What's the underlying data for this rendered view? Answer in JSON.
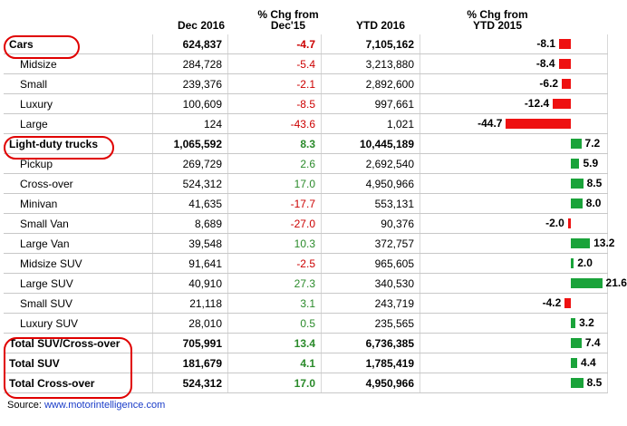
{
  "headers": {
    "dec": "Dec 2016",
    "chg_line1": "% Chg from",
    "chg_line2": "Dec'15",
    "ytd": "YTD 2016",
    "ytd_chg_line1": "% Chg from",
    "ytd_chg_line2": "YTD 2015"
  },
  "rows": [
    {
      "label": "Cars",
      "dec": "624,837",
      "chg": "-4.7",
      "ytd": "7,105,162",
      "ytd_chg": -8.1,
      "ytd_chg_text": "-8.1",
      "bold": true
    },
    {
      "label": "Midsize",
      "dec": "284,728",
      "chg": "-5.4",
      "ytd": "3,213,880",
      "ytd_chg": -8.4,
      "ytd_chg_text": "-8.4",
      "bold": false
    },
    {
      "label": "Small",
      "dec": "239,376",
      "chg": "-2.1",
      "ytd": "2,892,600",
      "ytd_chg": -6.2,
      "ytd_chg_text": "-6.2",
      "bold": false
    },
    {
      "label": "Luxury",
      "dec": "100,609",
      "chg": "-8.5",
      "ytd": "997,661",
      "ytd_chg": -12.4,
      "ytd_chg_text": "-12.4",
      "bold": false
    },
    {
      "label": "Large",
      "dec": "124",
      "chg": "-43.6",
      "ytd": "1,021",
      "ytd_chg": -44.7,
      "ytd_chg_text": "-44.7",
      "bold": false
    },
    {
      "label": "Light-duty trucks",
      "dec": "1,065,592",
      "chg": "8.3",
      "ytd": "10,445,189",
      "ytd_chg": 7.2,
      "ytd_chg_text": "7.2",
      "bold": true
    },
    {
      "label": "Pickup",
      "dec": "269,729",
      "chg": "2.6",
      "ytd": "2,692,540",
      "ytd_chg": 5.9,
      "ytd_chg_text": "5.9",
      "bold": false
    },
    {
      "label": "Cross-over",
      "dec": "524,312",
      "chg": "17.0",
      "ytd": "4,950,966",
      "ytd_chg": 8.5,
      "ytd_chg_text": "8.5",
      "bold": false
    },
    {
      "label": "Minivan",
      "dec": "41,635",
      "chg": "-17.7",
      "ytd": "553,131",
      "ytd_chg": 8.0,
      "ytd_chg_text": "8.0",
      "bold": false
    },
    {
      "label": "Small Van",
      "dec": "8,689",
      "chg": "-27.0",
      "ytd": "90,376",
      "ytd_chg": -2.0,
      "ytd_chg_text": "-2.0",
      "bold": false
    },
    {
      "label": "Large Van",
      "dec": "39,548",
      "chg": "10.3",
      "ytd": "372,757",
      "ytd_chg": 13.2,
      "ytd_chg_text": "13.2",
      "bold": false
    },
    {
      "label": "Midsize SUV",
      "dec": "91,641",
      "chg": "-2.5",
      "ytd": "965,605",
      "ytd_chg": 2.0,
      "ytd_chg_text": "2.0",
      "bold": false
    },
    {
      "label": "Large SUV",
      "dec": "40,910",
      "chg": "27.3",
      "ytd": "340,530",
      "ytd_chg": 21.6,
      "ytd_chg_text": "21.6",
      "bold": false
    },
    {
      "label": "Small SUV",
      "dec": "21,118",
      "chg": "3.1",
      "ytd": "243,719",
      "ytd_chg": -4.2,
      "ytd_chg_text": "-4.2",
      "bold": false
    },
    {
      "label": "Luxury SUV",
      "dec": "28,010",
      "chg": "0.5",
      "ytd": "235,565",
      "ytd_chg": 3.2,
      "ytd_chg_text": "3.2",
      "bold": false
    },
    {
      "label": "Total SUV/Cross-over",
      "dec": "705,991",
      "chg": "13.4",
      "ytd": "6,736,385",
      "ytd_chg": 7.4,
      "ytd_chg_text": "7.4",
      "bold": true
    },
    {
      "label": "Total SUV",
      "dec": "181,679",
      "chg": "4.1",
      "ytd": "1,785,419",
      "ytd_chg": 4.4,
      "ytd_chg_text": "4.4",
      "bold": true
    },
    {
      "label": "Total Cross-over",
      "dec": "524,312",
      "chg": "17.0",
      "ytd": "4,950,966",
      "ytd_chg": 8.5,
      "ytd_chg_text": "8.5",
      "bold": true
    }
  ],
  "source": {
    "prefix": "Source: ",
    "link": "www.motorintelligence.com"
  },
  "colors": {
    "negative": "#cc0000",
    "positive": "#2a8a2a",
    "bar_negative": "#ee1111",
    "bar_positive": "#1aa33a",
    "highlight_oval": "#e00000",
    "link": "#1a3cc8"
  }
}
